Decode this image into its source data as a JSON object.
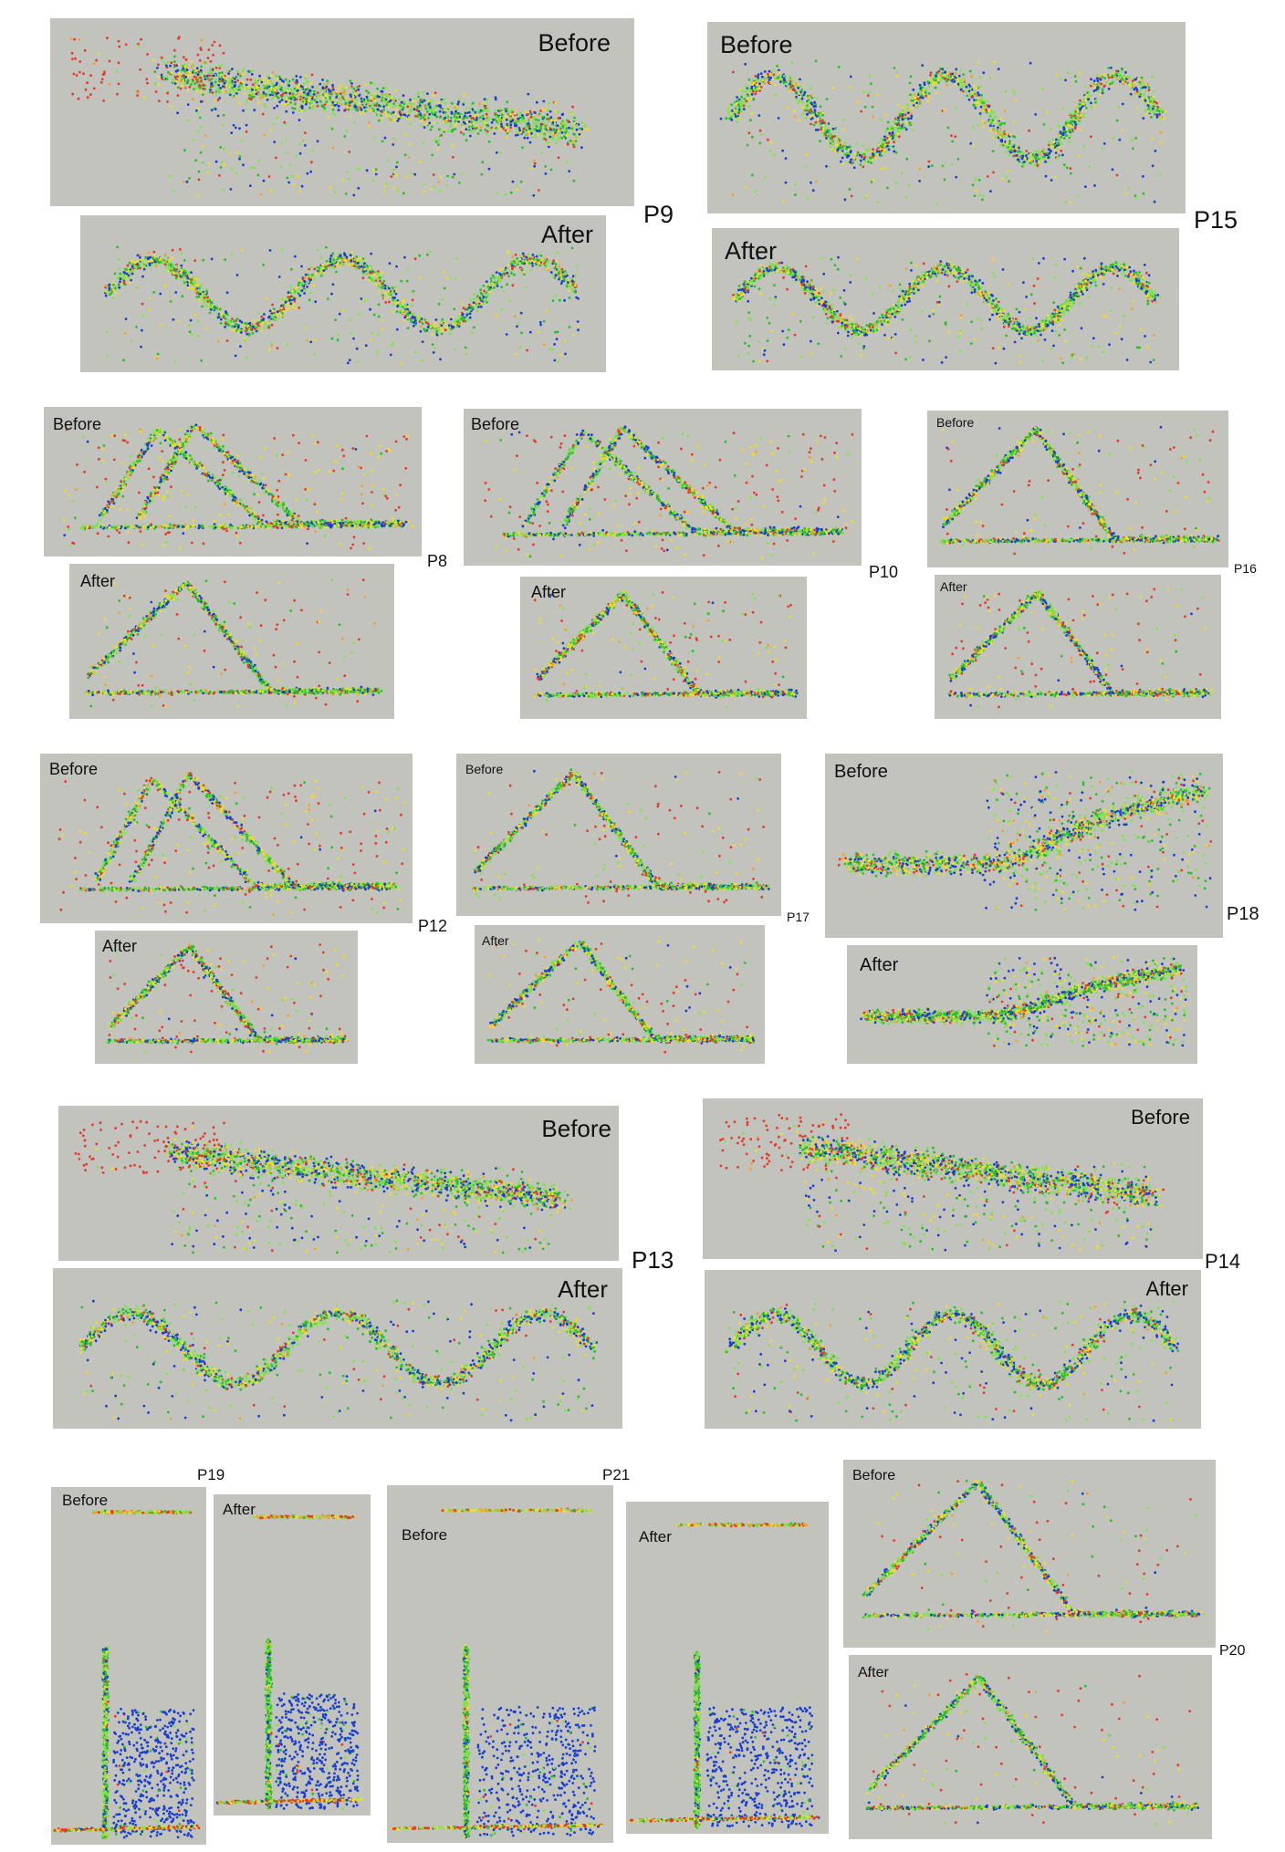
{
  "labels": {
    "before": "Before",
    "after": "After"
  },
  "point_colors": [
    "#e53a2a",
    "#f0dc2c",
    "#7fe34a",
    "#27c02a",
    "#1a3fd0",
    "#f3a02a"
  ],
  "panel_background": "#c3c3bd",
  "groups": [
    {
      "id": "P9"
    },
    {
      "id": "P15"
    },
    {
      "id": "P8"
    },
    {
      "id": "P10"
    },
    {
      "id": "P16"
    },
    {
      "id": "P12"
    },
    {
      "id": "P17"
    },
    {
      "id": "P18"
    },
    {
      "id": "P13"
    },
    {
      "id": "P14"
    },
    {
      "id": "P19"
    },
    {
      "id": "P21"
    },
    {
      "id": "P20"
    }
  ],
  "panel_shapes": {
    "P9-before": "noisy-band",
    "P9-after": "wave",
    "P15-before": "wave",
    "P15-after": "wave",
    "P8-before": "double-triangle",
    "P8-after": "triangle",
    "P10-before": "double-triangle",
    "P10-after": "triangle",
    "P16-before": "triangle",
    "P16-after": "triangle",
    "P12-before": "double-triangle",
    "P12-after": "triangle",
    "P17-before": "triangle",
    "P17-after": "triangle",
    "P18-before": "steps",
    "P18-after": "steps",
    "P13-before": "noisy-band",
    "P13-after": "wave",
    "P14-before": "noisy-band",
    "P14-after": "wave",
    "P19-before": "vertical",
    "P19-after": "vertical",
    "P21-before": "vertical",
    "P21-after": "vertical",
    "P20-before": "triangle",
    "P20-after": "triangle"
  }
}
